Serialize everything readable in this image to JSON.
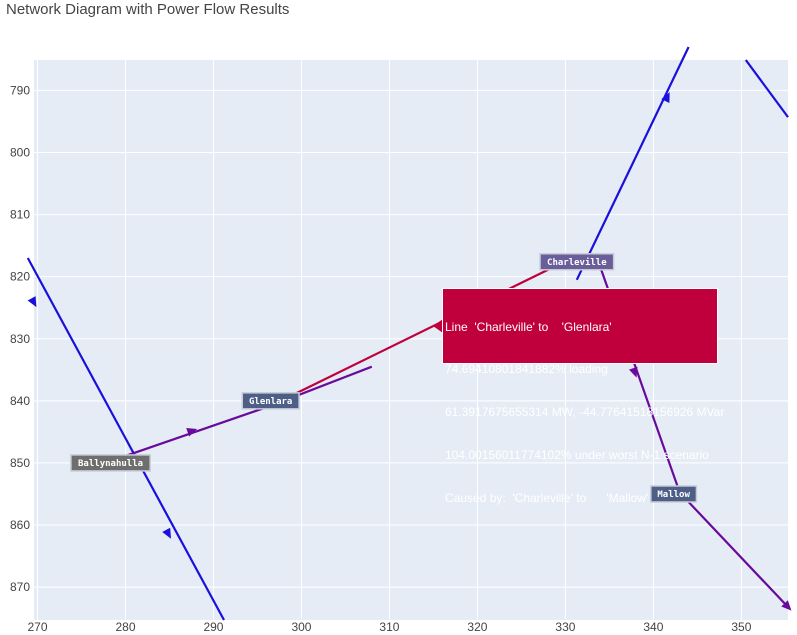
{
  "title": "Network Diagram with Power Flow Results",
  "colors": {
    "plot_bg": "#e5ecf6",
    "grid": "#ffffff",
    "blue_line": "#1a0fdc",
    "purple_line": "#6a0a9a",
    "crimson_line": "#c0003c"
  },
  "axes": {
    "x": {
      "range": [
        269.6,
        355.3
      ],
      "ticks": [
        270,
        280,
        290,
        300,
        310,
        320,
        330,
        340,
        350
      ]
    },
    "y": {
      "range": [
        785.1,
        875.3
      ],
      "reversed": true,
      "ticks": [
        790,
        800,
        810,
        820,
        830,
        840,
        850,
        860,
        870
      ]
    }
  },
  "lines": [
    {
      "id": "line-blue-left",
      "color_key": "blue_line",
      "points": [
        [
          268.9,
          817.0
        ],
        [
          291.2,
          875.3
        ]
      ],
      "arrows": [
        {
          "x": 269.6,
          "y": 824.2,
          "dir": 1
        },
        {
          "x": 284.9,
          "y": 861.5,
          "dir": 1
        }
      ]
    },
    {
      "id": "line-blue-right",
      "color_key": "blue_line",
      "points": [
        [
          331.3,
          820.5
        ],
        [
          344.0,
          783.0
        ]
      ],
      "arrows": [
        {
          "x": 341.6,
          "y": 791.0,
          "dir": 1
        }
      ]
    },
    {
      "id": "line-blue-top",
      "color_key": "blue_line",
      "points": [
        [
          350.5,
          785.1
        ],
        [
          355.3,
          794.3
        ]
      ],
      "arrows": []
    },
    {
      "id": "line-purple-glenlara",
      "color_key": "purple_line",
      "points": [
        [
          278.3,
          849.7
        ],
        [
          296.5,
          840.8
        ],
        [
          308.0,
          834.5
        ]
      ],
      "arrows": [
        {
          "x": 287.6,
          "y": 844.8,
          "dir": 1
        }
      ]
    },
    {
      "id": "line-charleville-glenlara",
      "color_key": "crimson_line",
      "points": [
        [
          296.5,
          840.8
        ],
        [
          331.3,
          816.6
        ]
      ],
      "arrows": []
    },
    {
      "id": "line-purple-mallow",
      "color_key": "purple_line",
      "points": [
        [
          333.6,
          817.0
        ],
        [
          343.0,
          854.8
        ],
        [
          355.3,
          873.2
        ]
      ],
      "arrows": [
        {
          "x": 337.9,
          "y": 835.5,
          "dir": 1
        },
        {
          "x": 355.3,
          "y": 873.2,
          "dir": 1
        }
      ]
    }
  ],
  "nodes": [
    {
      "id": "ballynahulla",
      "label": "Ballynahulla",
      "x": 278.3,
      "y": 850.0,
      "color": "#6e6e6e"
    },
    {
      "id": "glenlara",
      "label": "Glenlara",
      "x": 296.5,
      "y": 840.0,
      "color": "#4d5f86"
    },
    {
      "id": "charleville",
      "label": "Charleville",
      "x": 331.3,
      "y": 817.6,
      "color": "#6a5e9a"
    },
    {
      "id": "mallow",
      "label": "Mallow",
      "x": 342.3,
      "y": 855.0,
      "color": "#4d5f86"
    }
  ],
  "tooltip": {
    "lines": [
      "Line  'Charleville' to    'Glenlara'",
      "74.69410801841882% loading",
      "61.3917675655314 MW, -44.77641518156926 MVar",
      "104.00156011774102% under worst N-1 scenario",
      "Caused by:  'Charleville' to      'Mallow'"
    ]
  }
}
